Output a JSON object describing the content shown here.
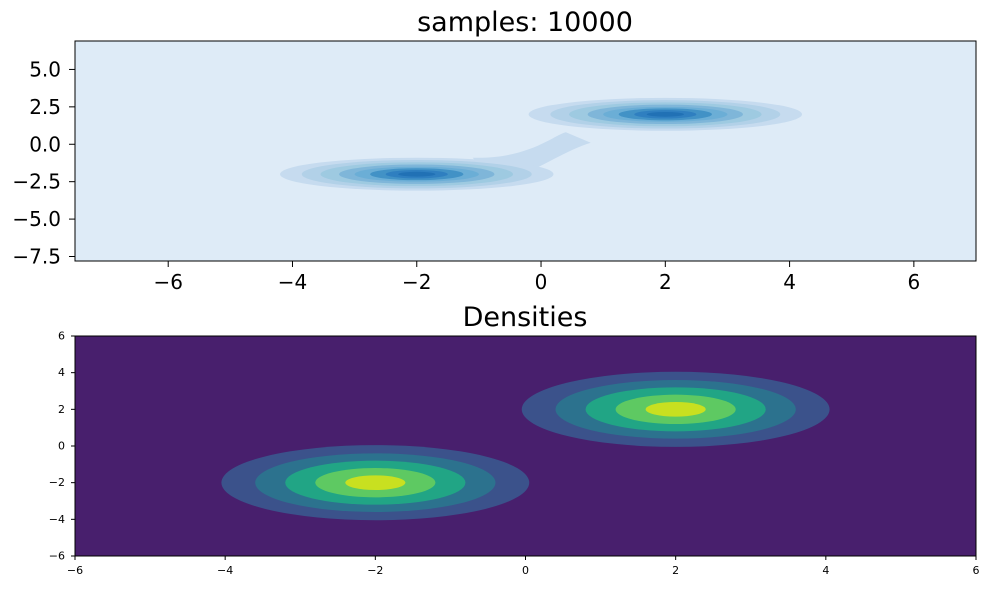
{
  "chart_data": [
    {
      "type": "contour",
      "title": "samples: 10000",
      "xlabel": "",
      "ylabel": "",
      "xlim": [
        -7.5,
        7.0
      ],
      "ylim": [
        -7.8,
        6.9
      ],
      "xticks": [
        -6,
        -4,
        -2,
        0,
        2,
        4,
        6
      ],
      "yticks": [
        5.0,
        2.5,
        0.0,
        -2.5,
        -5.0,
        -7.5
      ],
      "xtick_labels": [
        "−6",
        "−4",
        "−2",
        "0",
        "2",
        "4",
        "6"
      ],
      "ytick_labels": [
        "5.0",
        "2.5",
        "0.0",
        "−2.5",
        "−5.0",
        "−7.5"
      ],
      "colormap": "Blues",
      "background_color": "#deebf7",
      "level_colors": [
        "#c6dbef",
        "#b2d1e8",
        "#9ecae1",
        "#7fb6d9",
        "#6baed6",
        "#4292c6",
        "#2f7fc0",
        "#2171b5"
      ],
      "peaks": [
        {
          "x": -2.0,
          "y": -2.0
        },
        {
          "x": 2.0,
          "y": 2.0
        }
      ],
      "grid": false
    },
    {
      "type": "contour",
      "title": "Densities",
      "xlabel": "",
      "ylabel": "",
      "xlim": [
        -6,
        6
      ],
      "ylim": [
        -6,
        6
      ],
      "xticks": [
        -6,
        -4,
        -2,
        0,
        2,
        4,
        6
      ],
      "yticks": [
        6,
        4,
        2,
        0,
        -2,
        -4,
        -6
      ],
      "xtick_labels": [
        "−6",
        "−4",
        "−2",
        "0",
        "2",
        "4",
        "6"
      ],
      "ytick_labels": [
        "6",
        "4",
        "2",
        "0",
        "−2",
        "−4",
        "−6"
      ],
      "colormap": "viridis",
      "background_color": "#481f6d",
      "level_colors": [
        "#3b528b",
        "#2c728e",
        "#21a585",
        "#5ec962",
        "#c8e020"
      ],
      "peaks": [
        {
          "x": -2.0,
          "y": -2.0
        },
        {
          "x": 2.0,
          "y": 2.0
        }
      ],
      "grid": false
    }
  ]
}
